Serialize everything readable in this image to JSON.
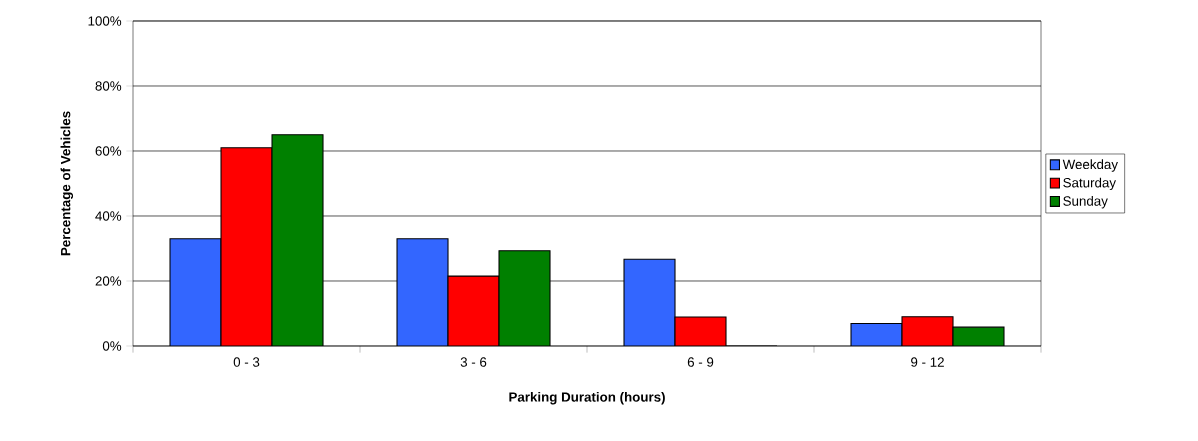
{
  "chart_data": {
    "type": "bar",
    "xlabel": "Parking Duration (hours)",
    "ylabel": "Percentage of Vehicles",
    "categories": [
      "0 - 3",
      "3 - 6",
      "6 - 9",
      "9 - 12"
    ],
    "series": [
      {
        "name": "Weekday",
        "color": "#3366ff",
        "values": [
          33,
          33,
          26.7,
          6.9
        ]
      },
      {
        "name": "Saturday",
        "color": "#ff0000",
        "values": [
          61,
          21.5,
          8.9,
          9
        ]
      },
      {
        "name": "Sunday",
        "color": "#008000",
        "values": [
          65,
          29.3,
          0,
          5.8
        ]
      }
    ],
    "ylim": [
      0,
      100
    ],
    "yticks": [
      {
        "value": 0,
        "label": "0%"
      },
      {
        "value": 20,
        "label": "20%"
      },
      {
        "value": 40,
        "label": "40%"
      },
      {
        "value": 60,
        "label": "60%"
      },
      {
        "value": 80,
        "label": "80%"
      },
      {
        "value": 100,
        "label": "100%"
      }
    ],
    "grid": "y",
    "legend": "right"
  }
}
